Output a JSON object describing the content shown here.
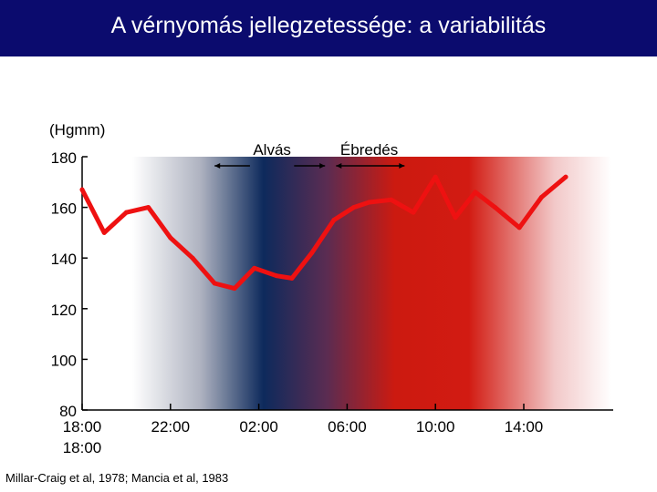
{
  "header": {
    "title": "A vérnyomás jellegzetessége: a variabilitás",
    "background_color": "#0b0b6e"
  },
  "chart_data": {
    "type": "line",
    "title": "A vérnyomás jellegzetessége: a variabilitás",
    "ylabel": "(Hgmm)",
    "xlabel": "",
    "ylim": [
      80,
      180
    ],
    "yticks": [
      180,
      160,
      140,
      120,
      100,
      80
    ],
    "xlim": [
      0,
      21
    ],
    "xticks": [
      {
        "x": 0,
        "label": "18:00",
        "sublabel": "18:00"
      },
      {
        "x": 4,
        "label": "22:00"
      },
      {
        "x": 8,
        "label": "02:00"
      },
      {
        "x": 12,
        "label": "06:00"
      },
      {
        "x": 16,
        "label": "10:00"
      },
      {
        "x": 20,
        "label": "14:00"
      }
    ],
    "grid": false,
    "series": [
      {
        "color": "#ee1111",
        "x": [
          0.0,
          1.0,
          2.0,
          3.0,
          4.0,
          5.0,
          6.0,
          6.9,
          7.8,
          8.8,
          9.5,
          10.4,
          11.4,
          12.3,
          13.0,
          14.0,
          15.0,
          16.0,
          16.9,
          17.8,
          18.7,
          19.8,
          20.8,
          21.9
        ],
        "values": [
          167,
          150,
          158,
          160,
          148,
          140,
          130,
          128,
          136,
          133,
          132,
          142,
          155,
          160,
          162,
          163,
          158,
          172,
          156,
          166,
          160,
          152,
          164,
          172
        ]
      }
    ],
    "annotations": [
      {
        "text": "Alvás",
        "arrow_from_x": 6.0,
        "arrow_to_x": 7.6,
        "span_to_x": 11.0
      },
      {
        "text": "Ébredés",
        "arrow_from_x": 11.5,
        "arrow_to_x": 14.6
      }
    ],
    "background_gradient": {
      "navy": "#0d2a5c",
      "red": "#cc1a10",
      "navy_center_x": 9.0,
      "red_center_x": 15.0
    }
  },
  "citation": "Millar-Craig et al, 1978; Mancia et al, 1983"
}
